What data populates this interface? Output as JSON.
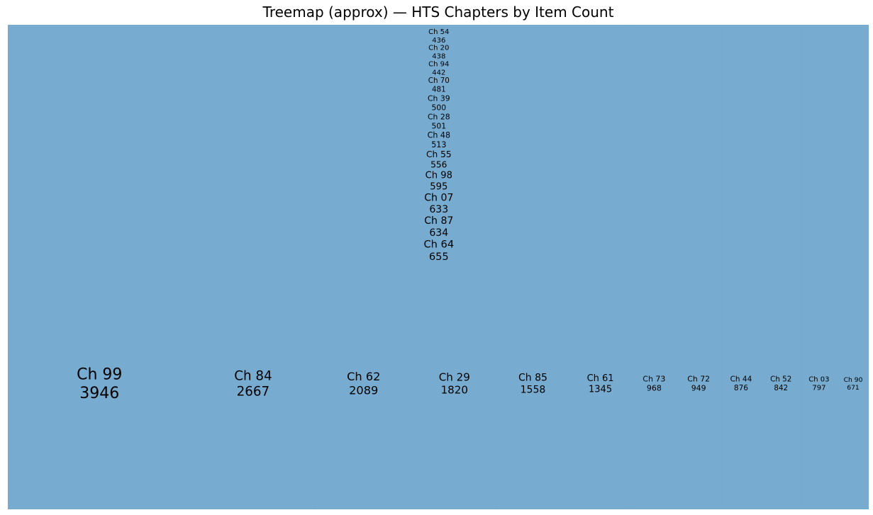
{
  "chart_data": {
    "type": "treemap",
    "title": "Treemap (approx) — HTS Chapters by Item Count",
    "fill_color": "#77abd0",
    "items": [
      {
        "label": "Ch 99",
        "value": 3946
      },
      {
        "label": "Ch 84",
        "value": 2667
      },
      {
        "label": "Ch 62",
        "value": 2089
      },
      {
        "label": "Ch 29",
        "value": 1820
      },
      {
        "label": "Ch 85",
        "value": 1558
      },
      {
        "label": "Ch 61",
        "value": 1345
      },
      {
        "label": "Ch 73",
        "value": 968
      },
      {
        "label": "Ch 72",
        "value": 949
      },
      {
        "label": "Ch 44",
        "value": 876
      },
      {
        "label": "Ch 52",
        "value": 842
      },
      {
        "label": "Ch 03",
        "value": 797
      },
      {
        "label": "Ch 90",
        "value": 671
      },
      {
        "label": "Ch 64",
        "value": 655
      },
      {
        "label": "Ch 87",
        "value": 634
      },
      {
        "label": "Ch 07",
        "value": 633
      },
      {
        "label": "Ch 98",
        "value": 595
      },
      {
        "label": "Ch 55",
        "value": 556
      },
      {
        "label": "Ch 48",
        "value": 513
      },
      {
        "label": "Ch 28",
        "value": 501
      },
      {
        "label": "Ch 39",
        "value": 500
      },
      {
        "label": "Ch 70",
        "value": 481
      },
      {
        "label": "Ch 94",
        "value": 442
      },
      {
        "label": "Ch 20",
        "value": 438
      },
      {
        "label": "Ch 54",
        "value": 436
      }
    ]
  }
}
